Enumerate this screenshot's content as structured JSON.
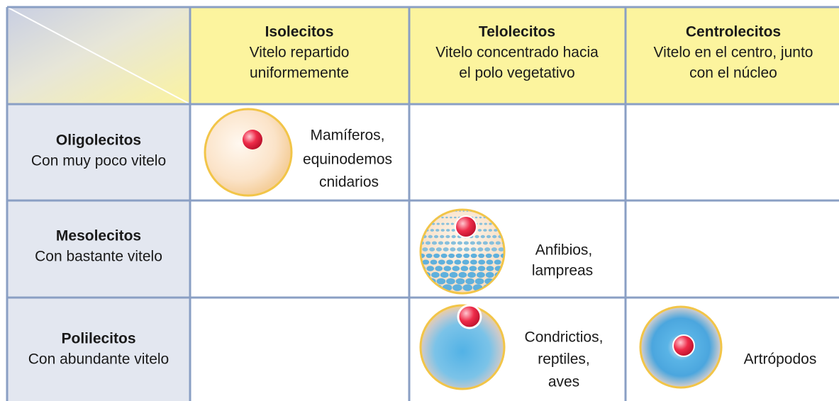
{
  "header": {
    "columns": [
      {
        "title": "Isolecitos",
        "subtitle": [
          "Vitelo repartido",
          "uniformemente"
        ]
      },
      {
        "title": "Telolecitos",
        "subtitle": [
          "Vitelo concentrado hacia",
          "el polo vegetativo"
        ]
      },
      {
        "title": "Centrolecitos",
        "subtitle": [
          "Vitelo en el centro, junto",
          "con el núcleo"
        ]
      }
    ]
  },
  "rows": [
    {
      "title": "Oligolecitos",
      "subtitle": "Con muy poco vitelo",
      "cells": [
        {
          "label": [
            "Mamíferos,",
            "equinodemos",
            "cnidarios"
          ]
        },
        null,
        null
      ]
    },
    {
      "title": "Mesolecitos",
      "subtitle": "Con bastante vitelo",
      "cells": [
        null,
        {
          "label": [
            "Anfibios,",
            "lampreas"
          ]
        },
        null
      ]
    },
    {
      "title": "Polilecitos",
      "subtitle": "Con abundante vitelo",
      "cells": [
        null,
        {
          "label": [
            "Condrictios,",
            "reptiles,",
            "aves"
          ]
        },
        {
          "label": [
            "Artrópodos"
          ]
        }
      ]
    }
  ]
}
